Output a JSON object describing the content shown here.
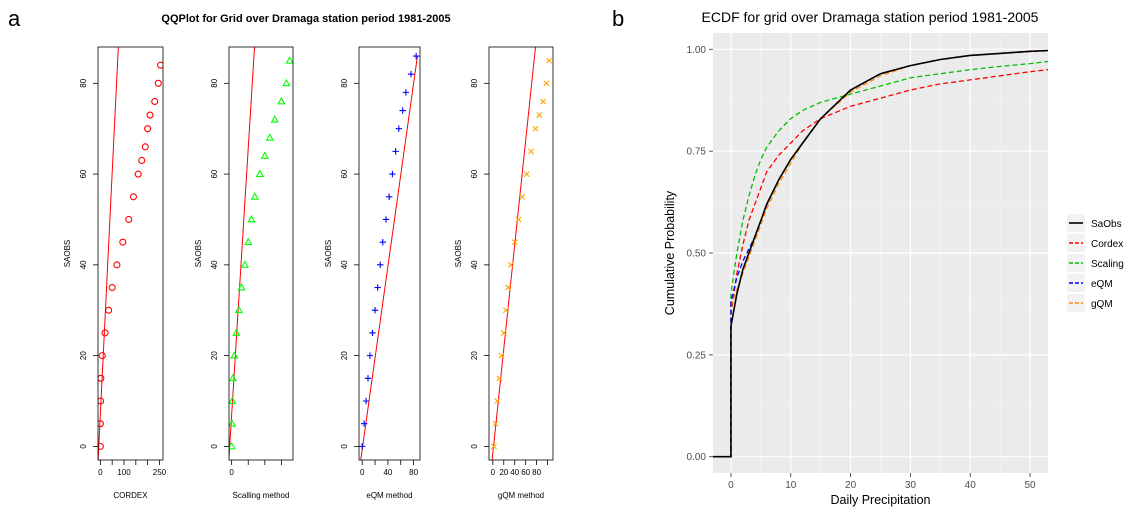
{
  "panel_labels": {
    "a": "a",
    "b": "b"
  },
  "chart_data": [
    {
      "type": "scatter",
      "title": "QQPlot for Grid over Dramaga station period 1981-2005",
      "ylabel": "SAOBS",
      "yticks": [
        "0",
        "20",
        "40",
        "60",
        "80"
      ],
      "ylim": [
        -3,
        88
      ],
      "panels": [
        {
          "xlabel": "CORDEX",
          "color": "#ff0000",
          "marker": "circle",
          "xlim": [
            -10,
            265
          ],
          "xticks": [
            0,
            50,
            100,
            150,
            200,
            250
          ],
          "xtick_labels": [
            "0",
            "",
            "100",
            "",
            "",
            "250"
          ],
          "points": [
            [
              0,
              0
            ],
            [
              0,
              5
            ],
            [
              1,
              10
            ],
            [
              2,
              15
            ],
            [
              8,
              20
            ],
            [
              20,
              25
            ],
            [
              35,
              30
            ],
            [
              50,
              35
            ],
            [
              70,
              40
            ],
            [
              95,
              45
            ],
            [
              120,
              50
            ],
            [
              140,
              55
            ],
            [
              160,
              60
            ],
            [
              175,
              63
            ],
            [
              190,
              66
            ],
            [
              200,
              70
            ],
            [
              210,
              73
            ],
            [
              230,
              76
            ],
            [
              245,
              80
            ],
            [
              255,
              84
            ]
          ],
          "refline": [
            [
              -10,
              -3.5
            ],
            [
              76,
              88
            ]
          ]
        },
        {
          "xlabel": "Scalling method",
          "color": "#00ff00",
          "marker": "triangle",
          "xlim": [
            -8,
            185
          ],
          "xticks": [
            0,
            50,
            100,
            150
          ],
          "xtick_labels": [
            "0",
            "",
            "",
            ""
          ],
          "points": [
            [
              0,
              0
            ],
            [
              1,
              5
            ],
            [
              2,
              10
            ],
            [
              4,
              15
            ],
            [
              8,
              20
            ],
            [
              14,
              25
            ],
            [
              22,
              30
            ],
            [
              30,
              35
            ],
            [
              40,
              40
            ],
            [
              50,
              45
            ],
            [
              60,
              50
            ],
            [
              70,
              55
            ],
            [
              85,
              60
            ],
            [
              100,
              64
            ],
            [
              115,
              68
            ],
            [
              130,
              72
            ],
            [
              150,
              76
            ],
            [
              165,
              80
            ],
            [
              175,
              85
            ]
          ],
          "refline": [
            [
              -8,
              -2.4
            ],
            [
              69,
              88
            ]
          ]
        },
        {
          "xlabel": "eQM method",
          "color": "#0000ff",
          "marker": "plus",
          "xlim": [
            -5,
            90
          ],
          "xticks": [
            0,
            20,
            40,
            60,
            80
          ],
          "xtick_labels": [
            "0",
            "",
            "40",
            "",
            "80"
          ],
          "points": [
            [
              0,
              0
            ],
            [
              3,
              5
            ],
            [
              6,
              10
            ],
            [
              9,
              15
            ],
            [
              12,
              20
            ],
            [
              16,
              25
            ],
            [
              20,
              30
            ],
            [
              24,
              35
            ],
            [
              28,
              40
            ],
            [
              32,
              45
            ],
            [
              37,
              50
            ],
            [
              42,
              55
            ],
            [
              47,
              60
            ],
            [
              52,
              65
            ],
            [
              57,
              70
            ],
            [
              63,
              74
            ],
            [
              68,
              78
            ],
            [
              76,
              82
            ],
            [
              84,
              86
            ]
          ],
          "refline": [
            [
              -5,
              -5.7
            ],
            [
              86,
              86
            ]
          ]
        },
        {
          "xlabel": "gQM method",
          "color": "#ffa500",
          "marker": "x",
          "xlim": [
            -7,
            110
          ],
          "xticks": [
            0,
            20,
            40,
            60,
            80,
            100
          ],
          "xtick_labels": [
            "0",
            "20",
            "40",
            "60",
            "80",
            ""
          ],
          "points": [
            [
              2,
              0
            ],
            [
              5,
              5
            ],
            [
              8,
              10
            ],
            [
              12,
              15
            ],
            [
              16,
              20
            ],
            [
              20,
              25
            ],
            [
              24,
              30
            ],
            [
              28,
              35
            ],
            [
              33,
              40
            ],
            [
              40,
              45
            ],
            [
              47,
              50
            ],
            [
              54,
              55
            ],
            [
              62,
              60
            ],
            [
              70,
              65
            ],
            [
              78,
              70
            ],
            [
              85,
              73
            ],
            [
              92,
              76
            ],
            [
              98,
              80
            ],
            [
              103,
              85
            ]
          ],
          "refline": [
            [
              -7,
              -9.5
            ],
            [
              78,
              88
            ]
          ]
        }
      ]
    },
    {
      "type": "line",
      "title": "ECDF for grid over Dramaga station period 1981-2005",
      "xlabel": "Daily Precipitation",
      "ylabel": "Cumulative Probability",
      "xlim": [
        -3,
        53
      ],
      "ylim": [
        -0.04,
        1.04
      ],
      "xticks": [
        "0",
        "10",
        "20",
        "30",
        "40",
        "50"
      ],
      "yticks": [
        "0.00",
        "0.25",
        "0.50",
        "0.75",
        "1.00"
      ],
      "grid": true,
      "legend_position": "right",
      "x": [
        0,
        1,
        2,
        3,
        4,
        5,
        6,
        8,
        10,
        12,
        15,
        20,
        25,
        30,
        35,
        40,
        45,
        50,
        53
      ],
      "series": [
        {
          "name": "SaObs",
          "color": "#000000",
          "dash": "solid",
          "values": [
            0.32,
            0.4,
            0.46,
            0.5,
            0.54,
            0.58,
            0.62,
            0.68,
            0.73,
            0.77,
            0.83,
            0.9,
            0.94,
            0.96,
            0.975,
            0.985,
            0.99,
            0.995,
            0.997
          ]
        },
        {
          "name": "Cordex",
          "color": "#ff0000",
          "dash": "dashed",
          "values": [
            0.35,
            0.45,
            0.52,
            0.58,
            0.62,
            0.66,
            0.7,
            0.74,
            0.77,
            0.8,
            0.83,
            0.86,
            0.88,
            0.9,
            0.915,
            0.925,
            0.935,
            0.945,
            0.95
          ]
        },
        {
          "name": "Scaling",
          "color": "#00c000",
          "dash": "dashed",
          "values": [
            0.4,
            0.5,
            0.58,
            0.64,
            0.69,
            0.73,
            0.76,
            0.8,
            0.83,
            0.85,
            0.87,
            0.89,
            0.91,
            0.93,
            0.94,
            0.95,
            0.958,
            0.965,
            0.97
          ]
        },
        {
          "name": "eQM",
          "color": "#0000ff",
          "dash": "dashed",
          "values": [
            0.38,
            0.44,
            0.48,
            0.51,
            0.54,
            0.58,
            0.62,
            0.68,
            0.73,
            0.77,
            0.83,
            0.9,
            0.94,
            0.96,
            0.975,
            0.985,
            0.99,
            0.995,
            0.997
          ]
        },
        {
          "name": "gQM",
          "color": "#ff8c00",
          "dash": "dashed",
          "values": [
            0.37,
            0.41,
            0.45,
            0.49,
            0.53,
            0.57,
            0.61,
            0.67,
            0.72,
            0.77,
            0.83,
            0.895,
            0.935,
            0.96,
            0.975,
            0.985,
            0.99,
            0.994,
            0.996
          ]
        }
      ]
    }
  ]
}
